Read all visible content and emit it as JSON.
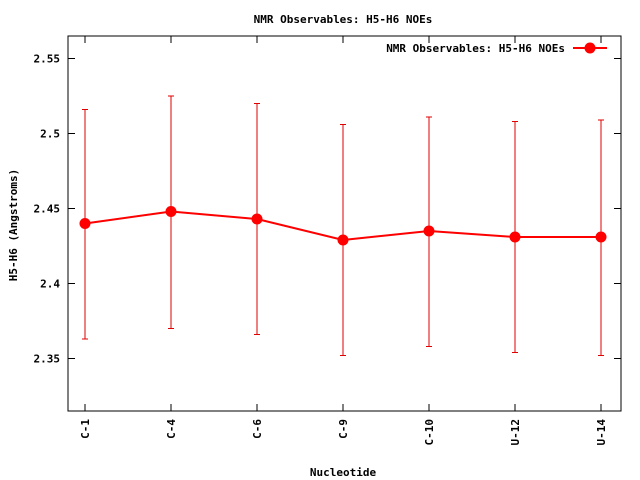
{
  "chart_data": {
    "type": "line",
    "title": "NMR Observables: H5-H6 NOEs",
    "xlabel": "Nucleotide",
    "ylabel": "H5-H6 (Angstroms)",
    "ylim": [
      2.315,
      2.565
    ],
    "yticks": [
      2.35,
      2.4,
      2.45,
      2.5,
      2.55
    ],
    "ytick_labels": [
      "2.35",
      "2.4",
      "2.45",
      "2.5",
      "2.55"
    ],
    "categories": [
      "C-1",
      "C-4",
      "C-6",
      "C-9",
      "C-10",
      "U-12",
      "U-14"
    ],
    "series": [
      {
        "name": "NMR Observables: H5-H6 NOEs",
        "values": [
          2.44,
          2.448,
          2.443,
          2.429,
          2.435,
          2.431,
          2.431
        ],
        "error_low": [
          2.363,
          2.37,
          2.366,
          2.352,
          2.358,
          2.354,
          2.352
        ],
        "error_high": [
          2.516,
          2.525,
          2.52,
          2.506,
          2.511,
          2.508,
          2.509
        ]
      }
    ],
    "legend_position": "top-right",
    "grid": false,
    "colors": {
      "series": "#ff0000",
      "errorbar": "#e00000",
      "axis": "#000000"
    }
  }
}
